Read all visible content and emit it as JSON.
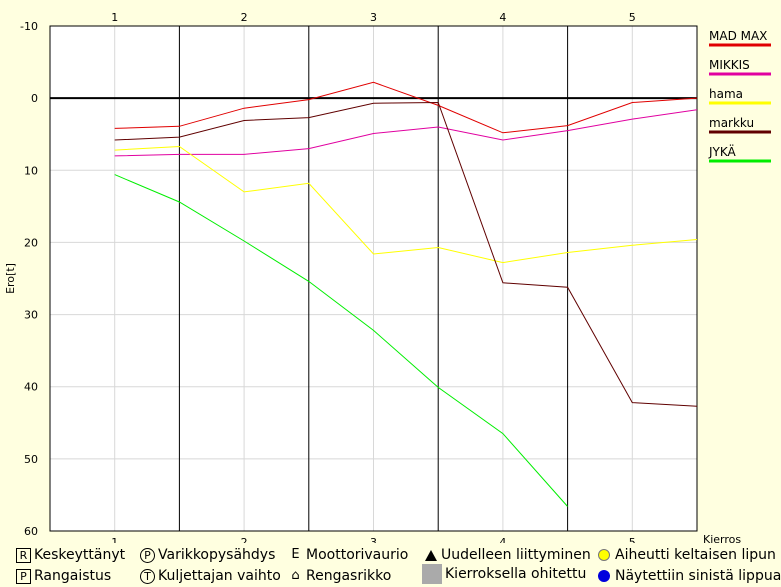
{
  "chart_data": {
    "type": "line",
    "title": "",
    "xlabel": "Kierros",
    "ylabel": "Ero[t]",
    "xlim": [
      0.5,
      5.5
    ],
    "ylim": [
      -10,
      60
    ],
    "y_inverted": true,
    "y_ticks": [
      -10,
      0,
      10,
      20,
      30,
      40,
      50,
      60
    ],
    "x_ticks": [
      1,
      2,
      3,
      4,
      5
    ],
    "grid": true,
    "legend_position": "right",
    "zero_line": 0,
    "x": [
      1.0,
      1.5,
      2.0,
      2.5,
      3.0,
      3.5,
      4.0,
      4.5,
      5.0,
      5.5
    ],
    "series": [
      {
        "name": "MAD MAX",
        "color": "#e00000",
        "values": [
          4.2,
          3.9,
          1.4,
          0.2,
          -2.2,
          1.0,
          4.8,
          3.8,
          0.6,
          0.0
        ]
      },
      {
        "name": "MIKKIS",
        "color": "#e000a0",
        "values": [
          8.0,
          7.8,
          7.8,
          7.0,
          4.9,
          4.0,
          5.8,
          4.5,
          2.9,
          1.6
        ]
      },
      {
        "name": "hama",
        "color": "#ffff00",
        "values": [
          7.2,
          6.7,
          13.0,
          11.8,
          21.6,
          20.7,
          22.8,
          21.4,
          20.4,
          19.6
        ]
      },
      {
        "name": "markku",
        "color": "#600000",
        "values": [
          5.8,
          5.4,
          3.1,
          2.7,
          0.7,
          0.6,
          25.6,
          26.2,
          42.2,
          42.7
        ]
      },
      {
        "name": "JYKÄ",
        "color": "#00ee00",
        "values": [
          10.6,
          14.4,
          19.8,
          25.4,
          32.2,
          40.1,
          46.5,
          56.6,
          null,
          null
        ]
      }
    ]
  },
  "footer": {
    "items": [
      {
        "icon": "R",
        "label": "Keskeyttänyt"
      },
      {
        "icon": "P",
        "label": "Varikkopysähdys"
      },
      {
        "icon": "E",
        "label": "Moottorivaurio"
      },
      {
        "icon": "▲",
        "label": "Uudelleen liittyminen"
      },
      {
        "icon": "yellow-dot",
        "label": "Aiheutti keltaisen lipun"
      },
      {
        "icon": "P",
        "label": "Rangaistus"
      },
      {
        "icon": "T",
        "label": "Kuljettajan vaihto"
      },
      {
        "icon": "⌂",
        "label": "Rengasrikko"
      },
      {
        "icon": "grey-square",
        "label": "Kierroksella ohitettu"
      },
      {
        "icon": "blue-dot",
        "label": "Näytettiin sinistä lippua"
      }
    ]
  }
}
